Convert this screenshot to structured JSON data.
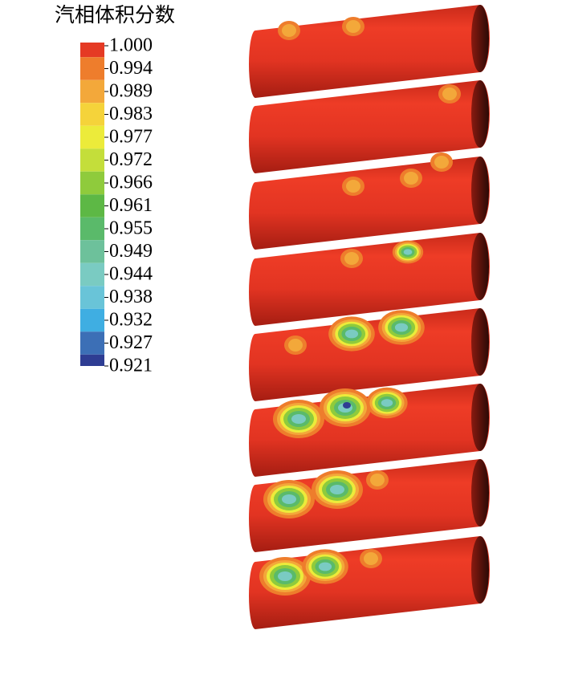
{
  "legend": {
    "title": "汽相体积分数",
    "labels": [
      "1.000",
      "0.994",
      "0.989",
      "0.983",
      "0.977",
      "0.972",
      "0.966",
      "0.961",
      "0.955",
      "0.949",
      "0.944",
      "0.938",
      "0.932",
      "0.927",
      "0.921"
    ],
    "colors": [
      "#e53a24",
      "#ee7d2c",
      "#f3a83a",
      "#f5d33a",
      "#eceb3a",
      "#c4de3a",
      "#8fcb3c",
      "#5db845",
      "#5aba6a",
      "#6dc19b",
      "#7acbc2",
      "#69c4d8",
      "#3faee2",
      "#3c6fb6",
      "#2e3d93"
    ]
  }
}
